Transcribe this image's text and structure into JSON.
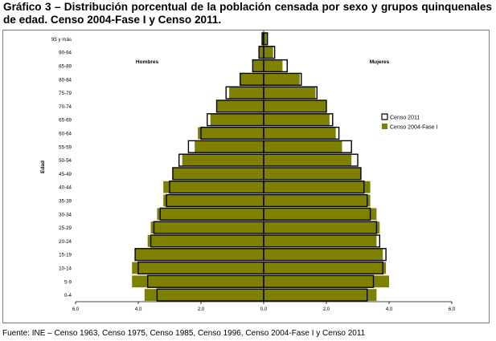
{
  "title": "Gráfico 3 – Distribución porcentual de la población censada por sexo y grupos quinquenales de edad. Censo 2004-Fase I y Censo 2011.",
  "source": "Fuente: INE – Censo 1963, Censo 1975, Censo 1985, Censo 1996, Censo 2004-Fase I y Censo 2011",
  "colors": {
    "censo_2004": "#808000",
    "censo_2011": "#ffffff",
    "outline": "#000000"
  },
  "chart_data": {
    "type": "bar",
    "orientation": "horizontal-pyramid",
    "ylabel": "Edad",
    "left_group_label": "Hombres",
    "right_group_label": "Mujeres",
    "categories": [
      "0-4",
      "5-9",
      "10-14",
      "15-19",
      "20-24",
      "25-29",
      "30-34",
      "35-39",
      "40-44",
      "45-49",
      "50-54",
      "55-59",
      "60-64",
      "65-69",
      "70-74",
      "75-79",
      "80-84",
      "85-89",
      "90-94",
      "95 y más"
    ],
    "x_ticks": [
      "6,0",
      "4,0",
      "2,0",
      "0,0",
      "2,0",
      "4,0",
      "6,0"
    ],
    "xlim": [
      -6,
      6
    ],
    "legend_position": "right",
    "series": [
      {
        "name": "Censo 2004-Fase I",
        "hombres": [
          3.8,
          4.2,
          4.2,
          4.1,
          3.7,
          3.6,
          3.4,
          3.2,
          3.2,
          2.9,
          2.6,
          2.2,
          2.1,
          1.7,
          1.5,
          1.1,
          0.75,
          0.35,
          0.15,
          0.05
        ],
        "mujeres": [
          3.6,
          4.0,
          3.9,
          3.8,
          3.6,
          3.7,
          3.6,
          3.4,
          3.4,
          3.1,
          2.8,
          2.5,
          2.3,
          2.1,
          2.0,
          1.65,
          1.15,
          0.6,
          0.3,
          0.1
        ]
      },
      {
        "name": "Censo 2011",
        "hombres": [
          3.4,
          3.7,
          4.0,
          4.1,
          3.6,
          3.5,
          3.3,
          3.1,
          3.0,
          2.9,
          2.7,
          2.4,
          2.0,
          1.8,
          1.5,
          1.2,
          0.75,
          0.35,
          0.15,
          0.05
        ],
        "mujeres": [
          3.3,
          3.5,
          3.8,
          3.9,
          3.7,
          3.6,
          3.4,
          3.3,
          3.2,
          3.1,
          3.0,
          2.8,
          2.4,
          2.2,
          2.0,
          1.7,
          1.2,
          0.75,
          0.35,
          0.12
        ]
      }
    ]
  }
}
